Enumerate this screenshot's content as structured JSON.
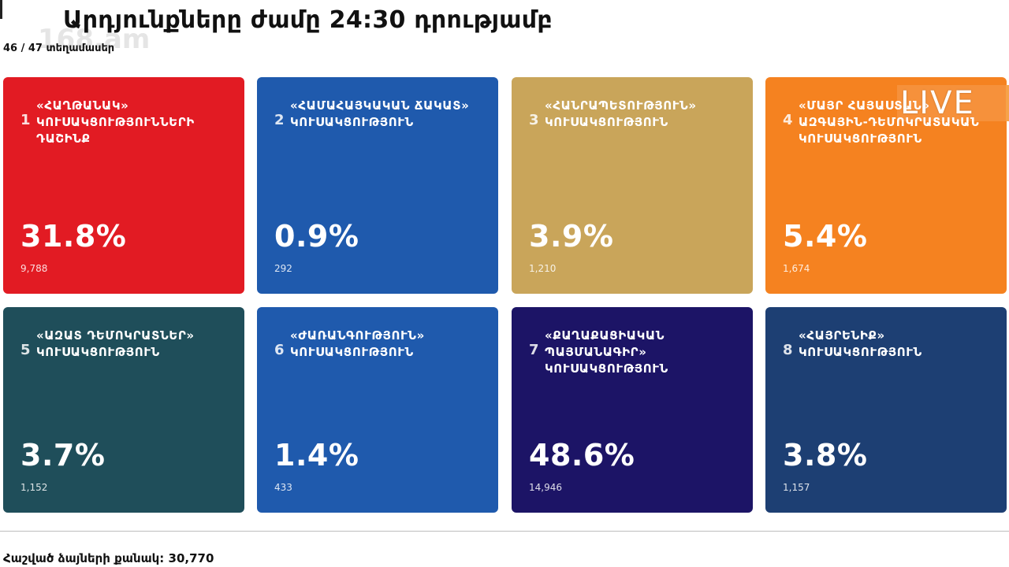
{
  "header": {
    "title": "Արդյունքները ժամը 24:30 դրությամբ",
    "precincts": "46 / 47 տեղամասեր",
    "watermark": "168.am"
  },
  "live_badge": "LIVE",
  "colors": {
    "card1": "#e21b23",
    "card2": "#1f5aad",
    "card3": "#c9a55a",
    "card4": "#f58220",
    "card5": "#1f4e5a",
    "card6": "#1f5aad",
    "card7": "#1c1466",
    "card8": "#1d3f73"
  },
  "parties": [
    {
      "number": "1",
      "name": "«Հաղթանակ» կուսակցությունների դաշինք",
      "percent": "31.8%",
      "votes": "9,788"
    },
    {
      "number": "2",
      "name": "«Համահայկական ճակատ» կուսակցություն",
      "percent": "0.9%",
      "votes": "292"
    },
    {
      "number": "3",
      "name": "«Հանրապետություն» կուսակցություն",
      "percent": "3.9%",
      "votes": "1,210"
    },
    {
      "number": "4",
      "name": "«Մայր Հայաստան» Ազգային-դեմոկրատական կուսակցություն",
      "percent": "5.4%",
      "votes": "1,674"
    },
    {
      "number": "5",
      "name": "«Ազատ դեմոկրատներ» կուսակցություն",
      "percent": "3.7%",
      "votes": "1,152"
    },
    {
      "number": "6",
      "name": "«Ժառանգություն» կուսակցություն",
      "percent": "1.4%",
      "votes": "433"
    },
    {
      "number": "7",
      "name": "«Քաղաքացիական պայմանագիր» կուսակցություն",
      "percent": "48.6%",
      "votes": "14,946"
    },
    {
      "number": "8",
      "name": "«Հայրենիք» կուսակցություն",
      "percent": "3.8%",
      "votes": "1,157"
    }
  ],
  "footer": {
    "total": "Հաշված ձայների քանակ: 30,770"
  }
}
